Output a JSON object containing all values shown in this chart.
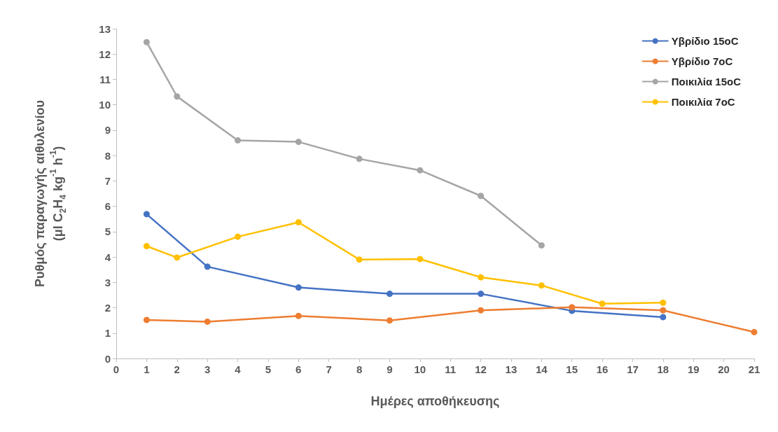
{
  "chart_data": {
    "type": "line",
    "xlabel": "Ημέρες αποθήκευσης",
    "ylabel": "Ρυθμός παραγωγής αιθυλενίου\n(μl C$_{2}$H$_{4}$ kg$^{-1}$ h$^{-1}$)",
    "xlim": [
      0,
      21
    ],
    "xticks": [
      0,
      1,
      2,
      3,
      4,
      5,
      6,
      7,
      8,
      9,
      10,
      11,
      12,
      13,
      14,
      15,
      16,
      17,
      18,
      19,
      20,
      21
    ],
    "ylim": [
      0,
      13
    ],
    "yticks": [
      0,
      1,
      2,
      3,
      4,
      5,
      6,
      7,
      8,
      9,
      10,
      11,
      12,
      13
    ],
    "grid": false,
    "legend": "top right",
    "marker": "circle",
    "line_style": "solid",
    "series": [
      {
        "name": "Υβρίδιο 15oC",
        "color": "#4472c4",
        "x": [
          1,
          3,
          6,
          9,
          12,
          15,
          18
        ],
        "values": [
          5.69,
          3.62,
          2.8,
          2.55,
          2.55,
          1.88,
          1.63
        ]
      },
      {
        "name": "Υβρίδιο 7oC",
        "color": "#ed7d31",
        "x": [
          1,
          3,
          6,
          9,
          12,
          15,
          18,
          21
        ],
        "values": [
          1.52,
          1.45,
          1.68,
          1.5,
          1.9,
          2.02,
          1.9,
          1.04
        ]
      },
      {
        "name": "Ποικιλία 15oC",
        "color": "#a5a5a5",
        "x": [
          1,
          2,
          4,
          6,
          8,
          10,
          12,
          14
        ],
        "values": [
          12.47,
          10.33,
          8.6,
          8.54,
          7.87,
          7.42,
          6.41,
          4.46
        ]
      },
      {
        "name": "Ποικιλία 7oC",
        "color": "#ffc000",
        "x": [
          1,
          2,
          4,
          6,
          8,
          10,
          12,
          14,
          16,
          18
        ],
        "values": [
          4.43,
          3.98,
          4.8,
          5.37,
          3.9,
          3.92,
          3.2,
          2.88,
          2.16,
          2.2
        ]
      }
    ]
  }
}
